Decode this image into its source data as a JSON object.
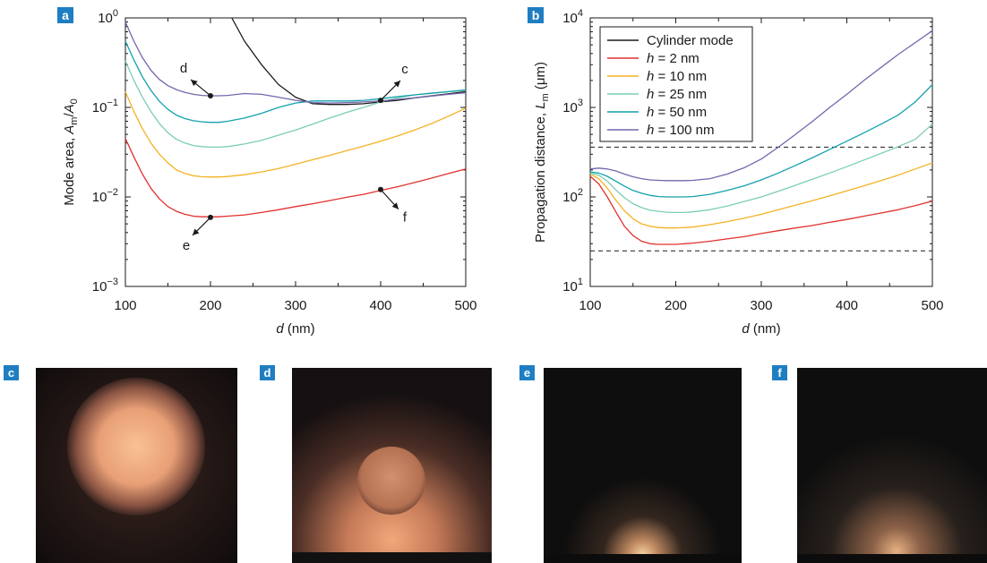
{
  "colors": {
    "panel_label_bg": "#1f7ec2",
    "cylinder": "#1a1a1a",
    "h2": "#e0312e",
    "h10": "#f4b223",
    "h25": "#7ccdb3",
    "h50": "#12a1ad",
    "h100": "#7566ad"
  },
  "chart_data": [
    {
      "panel": "a",
      "type": "line",
      "xlabel_italic": "d",
      "xlabel_unit": " (nm)",
      "ylabel": "Mode area, Aₘ/A₀",
      "ylabel_parts": [
        "Mode area, ",
        "A",
        "m",
        "/",
        "A",
        "0"
      ],
      "xlim": [
        100,
        500
      ],
      "ylim": [
        0.001,
        1
      ],
      "yscale": "log",
      "xticks": [
        100,
        200,
        300,
        400,
        500
      ],
      "xtick_labels": [
        "100",
        "200",
        "300",
        "400",
        "500"
      ],
      "yticks": [
        0.001,
        0.01,
        0.1,
        1
      ],
      "ytick_labels": [
        {
          "base": "10",
          "exp": "−3"
        },
        {
          "base": "10",
          "exp": "−2"
        },
        {
          "base": "10",
          "exp": "−1"
        },
        {
          "base": "10",
          "exp": "0"
        }
      ],
      "series": [
        {
          "key": "cylinder",
          "x": [
            225,
            240,
            260,
            280,
            300,
            320,
            340,
            360,
            380,
            400,
            420,
            440,
            460,
            480,
            500
          ],
          "y": [
            1.0,
            0.55,
            0.3,
            0.18,
            0.13,
            0.11,
            0.108,
            0.108,
            0.11,
            0.115,
            0.12,
            0.128,
            0.135,
            0.142,
            0.15
          ]
        },
        {
          "key": "h2",
          "x": [
            100,
            110,
            120,
            130,
            140,
            150,
            160,
            170,
            180,
            190,
            200,
            210,
            220,
            240,
            260,
            280,
            300,
            320,
            340,
            360,
            380,
            400,
            420,
            440,
            460,
            480,
            500
          ],
          "y": [
            0.045,
            0.028,
            0.018,
            0.0125,
            0.0095,
            0.0078,
            0.0069,
            0.0064,
            0.0061,
            0.006,
            0.006,
            0.006,
            0.0061,
            0.0063,
            0.0067,
            0.0072,
            0.0078,
            0.0084,
            0.0091,
            0.0099,
            0.0107,
            0.0118,
            0.013,
            0.0145,
            0.0162,
            0.0183,
            0.0205
          ]
        },
        {
          "key": "h10",
          "x": [
            100,
            110,
            120,
            130,
            140,
            150,
            160,
            170,
            180,
            190,
            200,
            210,
            220,
            240,
            260,
            280,
            300,
            320,
            340,
            360,
            380,
            400,
            420,
            440,
            460,
            480,
            500
          ],
          "y": [
            0.15,
            0.09,
            0.058,
            0.04,
            0.03,
            0.024,
            0.02,
            0.0183,
            0.0172,
            0.0168,
            0.0167,
            0.0167,
            0.0169,
            0.0177,
            0.019,
            0.0208,
            0.0232,
            0.026,
            0.0292,
            0.0328,
            0.037,
            0.042,
            0.048,
            0.056,
            0.066,
            0.08,
            0.098
          ]
        },
        {
          "key": "h25",
          "x": [
            100,
            110,
            120,
            130,
            140,
            150,
            160,
            170,
            180,
            190,
            200,
            210,
            220,
            240,
            260,
            280,
            300,
            320,
            340,
            360,
            380,
            400,
            420,
            440,
            460,
            480,
            500
          ],
          "y": [
            0.33,
            0.2,
            0.13,
            0.09,
            0.066,
            0.052,
            0.044,
            0.04,
            0.0375,
            0.0365,
            0.036,
            0.036,
            0.0365,
            0.039,
            0.043,
            0.049,
            0.056,
            0.065,
            0.076,
            0.088,
            0.1,
            0.115,
            0.128,
            0.138,
            0.145,
            0.15,
            0.155
          ]
        },
        {
          "key": "h50",
          "x": [
            100,
            110,
            120,
            130,
            140,
            150,
            160,
            170,
            180,
            190,
            200,
            210,
            220,
            240,
            260,
            280,
            300,
            320,
            340,
            360,
            380,
            400,
            420,
            440,
            460,
            480,
            500
          ],
          "y": [
            0.55,
            0.34,
            0.22,
            0.155,
            0.117,
            0.095,
            0.082,
            0.075,
            0.071,
            0.069,
            0.068,
            0.068,
            0.07,
            0.076,
            0.086,
            0.1,
            0.112,
            0.118,
            0.118,
            0.118,
            0.12,
            0.125,
            0.132,
            0.138,
            0.144,
            0.15,
            0.157
          ]
        },
        {
          "key": "h100",
          "x": [
            100,
            110,
            120,
            130,
            140,
            150,
            160,
            170,
            180,
            190,
            200,
            210,
            220,
            240,
            260,
            280,
            300,
            320,
            340,
            360,
            380,
            400,
            420,
            440,
            460,
            480,
            500
          ],
          "y": [
            0.9,
            0.55,
            0.36,
            0.26,
            0.205,
            0.175,
            0.158,
            0.147,
            0.14,
            0.136,
            0.135,
            0.135,
            0.136,
            0.143,
            0.14,
            0.13,
            0.12,
            0.113,
            0.112,
            0.113,
            0.115,
            0.118,
            0.123,
            0.128,
            0.134,
            0.14,
            0.146
          ]
        }
      ],
      "annotations": [
        {
          "label": "c",
          "x": 400,
          "y": 0.12
        },
        {
          "label": "d",
          "x": 200,
          "y": 0.135
        },
        {
          "label": "e",
          "x": 200,
          "y": 0.0059
        },
        {
          "label": "f",
          "x": 400,
          "y": 0.0121
        }
      ]
    },
    {
      "panel": "b",
      "type": "line",
      "xlabel_italic": "d",
      "xlabel_unit": " (nm)",
      "ylabel": "Propagation distance, Lₘ (μm)",
      "ylabel_parts": [
        "Propagation distance, ",
        "L",
        "m",
        " (μm)"
      ],
      "xlim": [
        100,
        500
      ],
      "ylim": [
        10,
        10000
      ],
      "yscale": "log",
      "xticks": [
        100,
        200,
        300,
        400,
        500
      ],
      "xtick_labels": [
        "100",
        "200",
        "300",
        "400",
        "500"
      ],
      "yticks": [
        10,
        100,
        1000,
        10000
      ],
      "ytick_labels": [
        {
          "base": "10",
          "exp": "1"
        },
        {
          "base": "10",
          "exp": "2"
        },
        {
          "base": "10",
          "exp": "3"
        },
        {
          "base": "10",
          "exp": "4"
        }
      ],
      "hlines": [
        360,
        25
      ],
      "legend_position": "top-left",
      "legend": [
        {
          "key": "cylinder",
          "prefix": "Cylinder mode",
          "italic": "",
          "suffix": ""
        },
        {
          "key": "h2",
          "prefix": "",
          "italic": "h",
          "suffix": " = 2 nm"
        },
        {
          "key": "h10",
          "prefix": "",
          "italic": "h",
          "suffix": " = 10 nm"
        },
        {
          "key": "h25",
          "prefix": "",
          "italic": "h",
          "suffix": " = 25 nm"
        },
        {
          "key": "h50",
          "prefix": "",
          "italic": "h",
          "suffix": " = 50 nm"
        },
        {
          "key": "h100",
          "prefix": "",
          "italic": "h",
          "suffix": " = 100 nm"
        }
      ],
      "series": [
        {
          "key": "h2",
          "x": [
            100,
            110,
            120,
            130,
            140,
            150,
            160,
            170,
            180,
            190,
            200,
            210,
            220,
            240,
            260,
            280,
            300,
            320,
            340,
            360,
            380,
            400,
            420,
            440,
            460,
            480,
            500
          ],
          "y": [
            170,
            140,
            100,
            68,
            47,
            37,
            32,
            30,
            29.5,
            29.5,
            29.5,
            30,
            30.5,
            32,
            34,
            36,
            39,
            42,
            45,
            48,
            52,
            56,
            61,
            66,
            72,
            80,
            90
          ]
        },
        {
          "key": "h10",
          "x": [
            100,
            110,
            120,
            130,
            140,
            150,
            160,
            170,
            180,
            190,
            200,
            210,
            220,
            240,
            260,
            280,
            300,
            320,
            340,
            360,
            380,
            400,
            420,
            440,
            460,
            480,
            500
          ],
          "y": [
            180,
            160,
            125,
            92,
            70,
            57,
            50,
            47,
            45.5,
            45,
            45,
            45.5,
            46,
            49,
            53,
            58,
            64,
            72,
            81,
            91,
            103,
            117,
            133,
            152,
            175,
            205,
            240
          ]
        },
        {
          "key": "h25",
          "x": [
            100,
            110,
            120,
            130,
            140,
            150,
            160,
            170,
            180,
            190,
            200,
            210,
            220,
            240,
            260,
            280,
            300,
            320,
            340,
            360,
            380,
            400,
            420,
            440,
            460,
            480,
            500
          ],
          "y": [
            185,
            175,
            150,
            120,
            98,
            84,
            76,
            71,
            69,
            67.5,
            67,
            67,
            68,
            72,
            79,
            89,
            100,
            116,
            135,
            158,
            185,
            218,
            258,
            306,
            365,
            440,
            650
          ]
        },
        {
          "key": "h50",
          "x": [
            100,
            110,
            120,
            130,
            140,
            150,
            160,
            170,
            180,
            190,
            200,
            210,
            220,
            240,
            260,
            280,
            300,
            320,
            340,
            360,
            380,
            400,
            420,
            440,
            460,
            480,
            500
          ],
          "y": [
            190,
            185,
            170,
            150,
            132,
            118,
            110,
            104,
            101,
            100,
            100,
            100,
            101,
            107,
            118,
            133,
            155,
            185,
            225,
            275,
            340,
            420,
            520,
            650,
            820,
            1150,
            1800
          ]
        },
        {
          "key": "h100",
          "x": [
            100,
            110,
            120,
            130,
            140,
            150,
            160,
            170,
            180,
            190,
            200,
            210,
            220,
            240,
            260,
            280,
            300,
            320,
            340,
            360,
            380,
            400,
            420,
            440,
            460,
            480,
            500
          ],
          "y": [
            205,
            210,
            205,
            195,
            180,
            168,
            160,
            155,
            153,
            152,
            152,
            152,
            153,
            160,
            180,
            212,
            265,
            360,
            500,
            700,
            1000,
            1400,
            2000,
            2800,
            3900,
            5300,
            7200
          ]
        }
      ]
    }
  ],
  "panel_labels": {
    "a": "a",
    "b": "b",
    "c": "c",
    "d": "d",
    "e": "e",
    "f": "f"
  },
  "images": [
    {
      "key": "c",
      "label": "c",
      "description_colors": [
        "#f6b28a",
        "#1b1210"
      ]
    },
    {
      "key": "d",
      "label": "d",
      "description_colors": [
        "#f0a67e",
        "#141010"
      ]
    },
    {
      "key": "e",
      "label": "e",
      "description_colors": [
        "#f4c38e",
        "#0f0f0f"
      ]
    },
    {
      "key": "f",
      "label": "f",
      "description_colors": [
        "#eab183",
        "#0f0f0f"
      ]
    }
  ]
}
